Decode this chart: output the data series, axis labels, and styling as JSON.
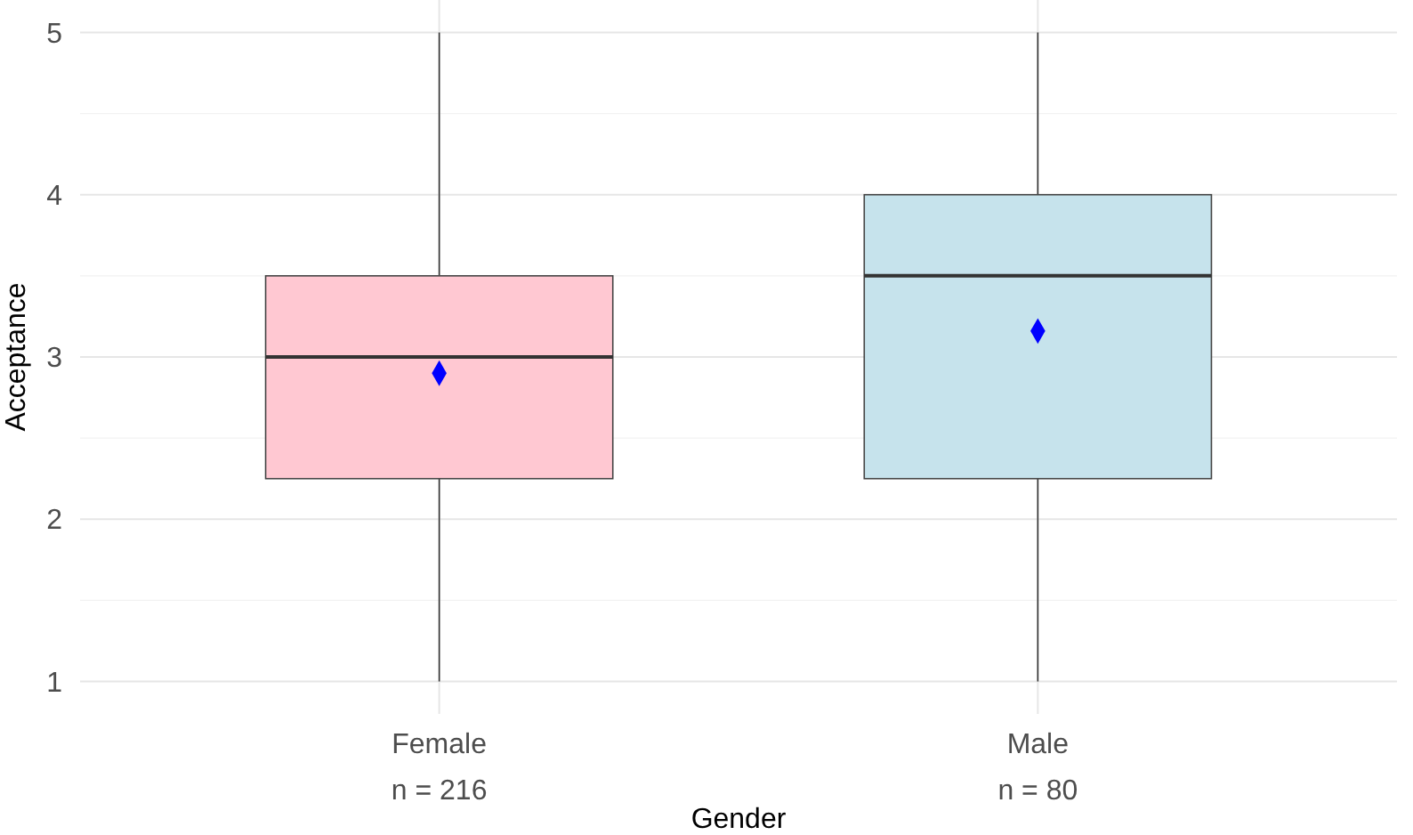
{
  "chart_data": {
    "type": "box",
    "xlabel": "Gender",
    "ylabel": "Acceptance",
    "categories": [
      "Female\nn = 216",
      "Male\nn = 80"
    ],
    "ylim": [
      0.8,
      5.2
    ],
    "yticks": [
      1,
      2,
      3,
      4,
      5
    ],
    "grid": true,
    "series": [
      {
        "colors": [
          "#ffc8d2",
          "#c6e3ec"
        ],
        "boxes": [
          {
            "low": 1,
            "q1": 2.25,
            "median": 3,
            "q3": 3.5,
            "high": 5
          },
          {
            "low": 1,
            "q1": 2.25,
            "median": 3.5,
            "q3": 4,
            "high": 5
          }
        ]
      },
      {
        "type": "scatter",
        "x": [
          "Female\nn = 216",
          "Male\nn = 80"
        ],
        "values": [
          2.9,
          3.16
        ],
        "color": "#0000ff",
        "marker": "diamond"
      }
    ]
  }
}
